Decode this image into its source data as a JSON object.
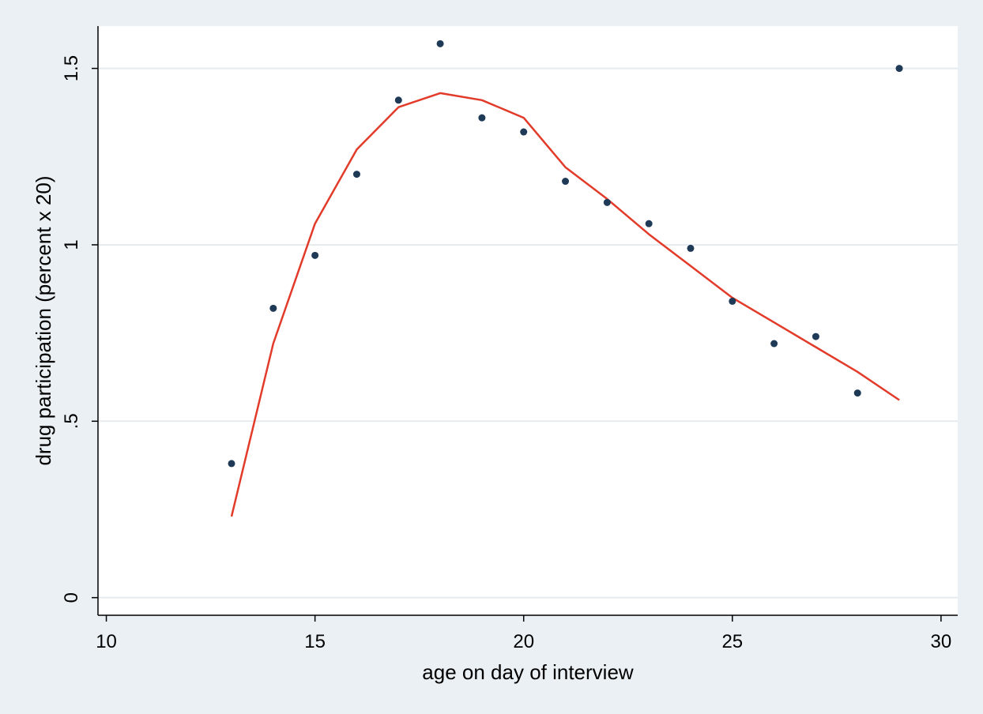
{
  "chart_data": {
    "type": "scatter",
    "xlabel": "age on day of interview",
    "ylabel": "drug participation (percent x 20)",
    "xlim": [
      9.8,
      30.4
    ],
    "ylim": [
      -0.05,
      1.62
    ],
    "xticks": [
      10,
      15,
      20,
      25,
      30
    ],
    "xtick_labels": [
      "10",
      "15",
      "20",
      "25",
      "30"
    ],
    "yticks": [
      0,
      0.5,
      1,
      1.5
    ],
    "ytick_labels": [
      "0",
      ".5",
      "1",
      "1.5"
    ],
    "grid": "horizontal",
    "colors": {
      "background": "#eaf0f3",
      "plot_area": "#ffffff",
      "gridline": "#e5ebef",
      "points": "#1f3a56",
      "fit_line": "#e23b2a"
    },
    "series": [
      {
        "kind": "points",
        "x": [
          13,
          14,
          15,
          16,
          17,
          18,
          19,
          20,
          21,
          22,
          23,
          24,
          25,
          26,
          27,
          28,
          29
        ],
        "y": [
          0.38,
          0.82,
          0.97,
          1.2,
          1.41,
          1.57,
          1.36,
          1.32,
          1.18,
          1.12,
          1.06,
          0.99,
          0.84,
          0.72,
          0.74,
          0.58,
          1.5
        ]
      },
      {
        "kind": "line",
        "x": [
          13,
          14,
          15,
          16,
          17,
          18,
          19,
          20,
          21,
          22,
          23,
          24,
          25,
          26,
          27,
          28,
          29
        ],
        "y": [
          0.23,
          0.72,
          1.06,
          1.27,
          1.39,
          1.43,
          1.41,
          1.36,
          1.22,
          1.13,
          1.03,
          0.94,
          0.85,
          0.78,
          0.71,
          0.64,
          0.56
        ]
      }
    ]
  }
}
